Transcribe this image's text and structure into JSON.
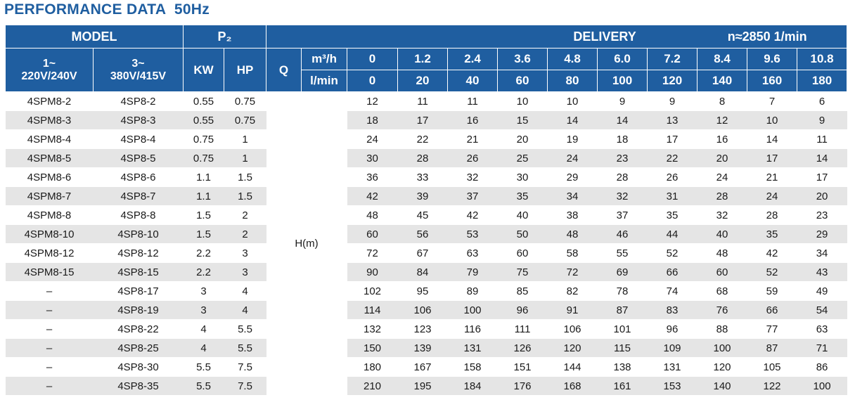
{
  "title": "PERFORMANCE DATA  50Hz",
  "headers": {
    "model": "MODEL",
    "p2": "P₂",
    "delivery": "DELIVERY",
    "speed": "n≈2850 1/min",
    "one_phase": "1~",
    "one_phase_v": "220V/240V",
    "three_phase": "3~",
    "three_phase_v": "380V/415V",
    "kw": "KW",
    "hp": "HP",
    "q": "Q",
    "m3h": "m³/h",
    "lmin": "l/min",
    "h_label": "H(m)"
  },
  "q_m3h": [
    "0",
    "1.2",
    "2.4",
    "3.6",
    "4.8",
    "6.0",
    "7.2",
    "8.4",
    "9.6",
    "10.8"
  ],
  "q_lmin": [
    "0",
    "20",
    "40",
    "60",
    "80",
    "100",
    "120",
    "140",
    "160",
    "180"
  ],
  "rows": [
    {
      "m1": "4SPM8-2",
      "m3": "4SP8-2",
      "kw": "0.55",
      "hp": "0.75",
      "h": [
        "12",
        "11",
        "11",
        "10",
        "10",
        "9",
        "9",
        "8",
        "7",
        "6"
      ]
    },
    {
      "m1": "4SPM8-3",
      "m3": "4SP8-3",
      "kw": "0.55",
      "hp": "0.75",
      "h": [
        "18",
        "17",
        "16",
        "15",
        "14",
        "14",
        "13",
        "12",
        "10",
        "9"
      ]
    },
    {
      "m1": "4SPM8-4",
      "m3": "4SP8-4",
      "kw": "0.75",
      "hp": "1",
      "h": [
        "24",
        "22",
        "21",
        "20",
        "19",
        "18",
        "17",
        "16",
        "14",
        "11"
      ]
    },
    {
      "m1": "4SPM8-5",
      "m3": "4SP8-5",
      "kw": "0.75",
      "hp": "1",
      "h": [
        "30",
        "28",
        "26",
        "25",
        "24",
        "23",
        "22",
        "20",
        "17",
        "14"
      ]
    },
    {
      "m1": "4SPM8-6",
      "m3": "4SP8-6",
      "kw": "1.1",
      "hp": "1.5",
      "h": [
        "36",
        "33",
        "32",
        "30",
        "29",
        "28",
        "26",
        "24",
        "21",
        "17"
      ]
    },
    {
      "m1": "4SPM8-7",
      "m3": "4SP8-7",
      "kw": "1.1",
      "hp": "1.5",
      "h": [
        "42",
        "39",
        "37",
        "35",
        "34",
        "32",
        "31",
        "28",
        "24",
        "20"
      ]
    },
    {
      "m1": "4SPM8-8",
      "m3": "4SP8-8",
      "kw": "1.5",
      "hp": "2",
      "h": [
        "48",
        "45",
        "42",
        "40",
        "38",
        "37",
        "35",
        "32",
        "28",
        "23"
      ]
    },
    {
      "m1": "4SPM8-10",
      "m3": "4SP8-10",
      "kw": "1.5",
      "hp": "2",
      "h": [
        "60",
        "56",
        "53",
        "50",
        "48",
        "46",
        "44",
        "40",
        "35",
        "29"
      ]
    },
    {
      "m1": "4SPM8-12",
      "m3": "4SP8-12",
      "kw": "2.2",
      "hp": "3",
      "h": [
        "72",
        "67",
        "63",
        "60",
        "58",
        "55",
        "52",
        "48",
        "42",
        "34"
      ]
    },
    {
      "m1": "4SPM8-15",
      "m3": "4SP8-15",
      "kw": "2.2",
      "hp": "3",
      "h": [
        "90",
        "84",
        "79",
        "75",
        "72",
        "69",
        "66",
        "60",
        "52",
        "43"
      ]
    },
    {
      "m1": "–",
      "m3": "4SP8-17",
      "kw": "3",
      "hp": "4",
      "h": [
        "102",
        "95",
        "89",
        "85",
        "82",
        "78",
        "74",
        "68",
        "59",
        "49"
      ]
    },
    {
      "m1": "–",
      "m3": "4SP8-19",
      "kw": "3",
      "hp": "4",
      "h": [
        "114",
        "106",
        "100",
        "96",
        "91",
        "87",
        "83",
        "76",
        "66",
        "54"
      ]
    },
    {
      "m1": "–",
      "m3": "4SP8-22",
      "kw": "4",
      "hp": "5.5",
      "h": [
        "132",
        "123",
        "116",
        "111",
        "106",
        "101",
        "96",
        "88",
        "77",
        "63"
      ]
    },
    {
      "m1": "–",
      "m3": "4SP8-25",
      "kw": "4",
      "hp": "5.5",
      "h": [
        "150",
        "139",
        "131",
        "126",
        "120",
        "115",
        "109",
        "100",
        "87",
        "71"
      ]
    },
    {
      "m1": "–",
      "m3": "4SP8-30",
      "kw": "5.5",
      "hp": "7.5",
      "h": [
        "180",
        "167",
        "158",
        "151",
        "144",
        "138",
        "131",
        "120",
        "105",
        "86"
      ]
    },
    {
      "m1": "–",
      "m3": "4SP8-35",
      "kw": "5.5",
      "hp": "7.5",
      "h": [
        "210",
        "195",
        "184",
        "176",
        "168",
        "161",
        "153",
        "140",
        "122",
        "100"
      ]
    }
  ],
  "colors": {
    "header_bg": "#1f5ea0",
    "stripe": "#e5e5e5",
    "title": "#1f5ea0"
  }
}
